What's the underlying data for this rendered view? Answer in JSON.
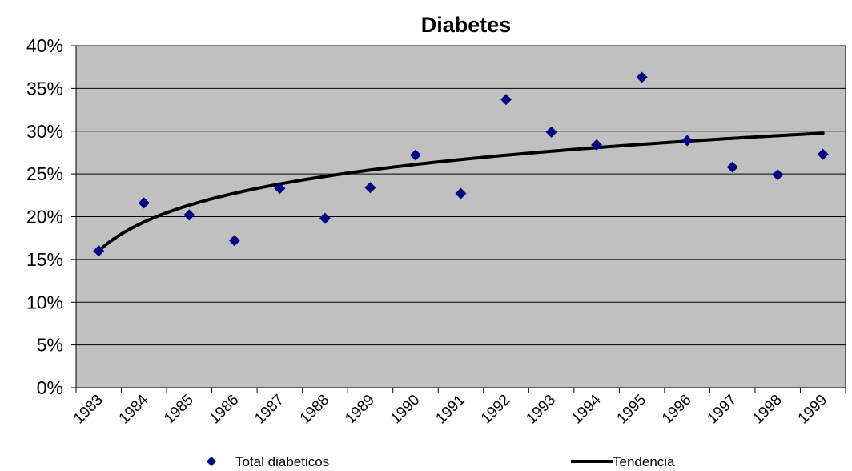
{
  "chart_data": {
    "type": "scatter",
    "title": "Diabetes",
    "xlabel": "",
    "ylabel": "",
    "x_categories": [
      "1983",
      "1984",
      "1985",
      "1986",
      "1987",
      "1988",
      "1989",
      "1990",
      "1991",
      "1992",
      "1993",
      "1994",
      "1995",
      "1996",
      "1997",
      "1998",
      "1999"
    ],
    "y_ticks": [
      "0%",
      "5%",
      "10%",
      "15%",
      "20%",
      "25%",
      "30%",
      "35%",
      "40%"
    ],
    "ylim": [
      0,
      40
    ],
    "grid": true,
    "legend_position": "bottom",
    "series": [
      {
        "name": "Total diabeticos",
        "kind": "scatter",
        "marker": "diamond",
        "color": "#000080",
        "values": [
          16.0,
          21.6,
          20.2,
          17.2,
          23.3,
          19.8,
          23.4,
          27.2,
          22.7,
          33.7,
          29.9,
          28.4,
          36.3,
          28.9,
          25.8,
          24.9,
          27.3
        ]
      },
      {
        "name": "Tendencia",
        "kind": "trendline",
        "fit": "logarithmic",
        "color": "#000000",
        "coef": 4.86,
        "intercept": 16.0
      }
    ],
    "colors": {
      "plot_background": "#c0c0c0",
      "gridline": "#000000"
    }
  }
}
